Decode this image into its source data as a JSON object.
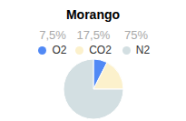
{
  "chart_data": {
    "type": "pie",
    "title": "Morango",
    "categories": [
      "O2",
      "CO2",
      "N2"
    ],
    "values": [
      7.5,
      17.5,
      75
    ],
    "value_labels": [
      "7,5%",
      "17,5%",
      "75%"
    ],
    "colors": [
      "#5189f5",
      "#fcf1cc",
      "#d3dfe2"
    ],
    "legend": "top"
  }
}
